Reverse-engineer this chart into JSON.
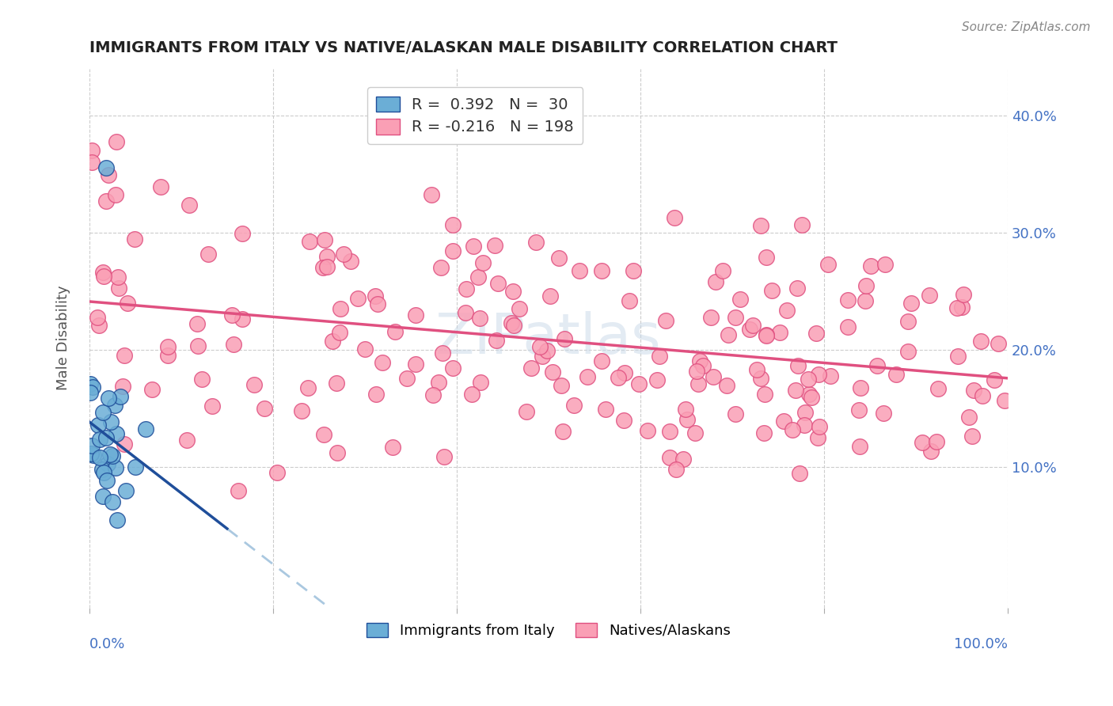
{
  "title": "IMMIGRANTS FROM ITALY VS NATIVE/ALASKAN MALE DISABILITY CORRELATION CHART",
  "source": "Source: ZipAtlas.com",
  "ylabel": "Male Disability",
  "xlim": [
    0.0,
    1.0
  ],
  "ylim": [
    -0.02,
    0.44
  ],
  "color_blue": "#6baed6",
  "color_pink": "#fa9fb5",
  "line_blue": "#1f4e9a",
  "line_pink": "#e05080",
  "line_dashed_blue": "#aac8e0",
  "background_color": "#ffffff",
  "watermark": "ZIPatlas"
}
